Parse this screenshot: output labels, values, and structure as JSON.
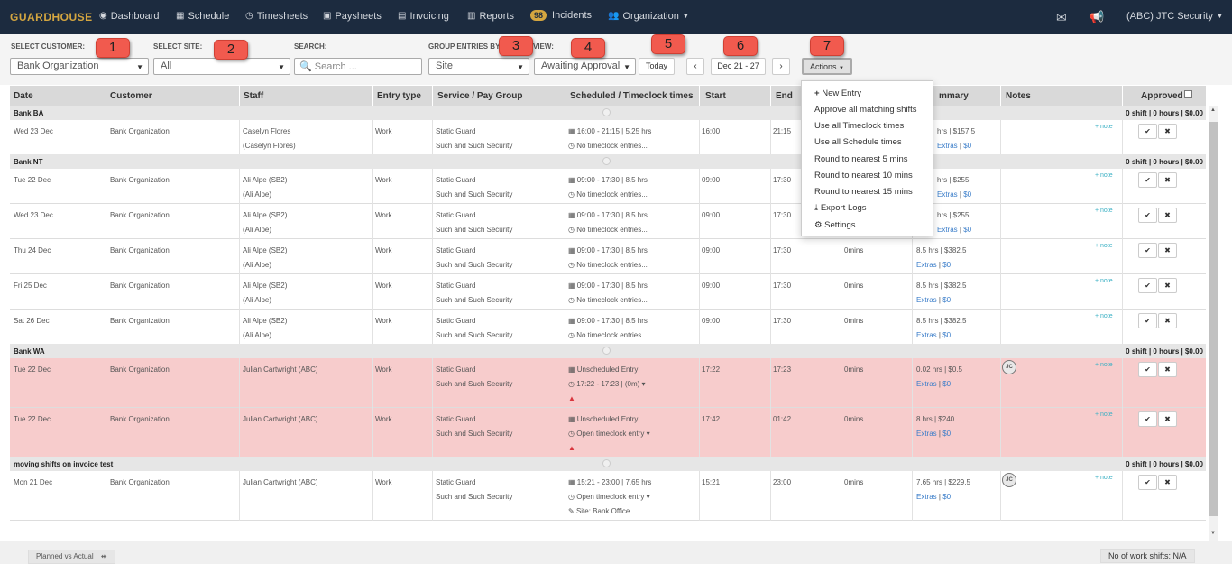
{
  "nav": {
    "logo": "GUARDHOUSE",
    "dashboard": "Dashboard",
    "schedule": "Schedule",
    "timesheets": "Timesheets",
    "paysheets": "Paysheets",
    "invoicing": "Invoicing",
    "reports": "Reports",
    "incidents_count": "98",
    "incidents": "Incidents",
    "organization": "Organization",
    "account": "(ABC) JTC Security"
  },
  "filters": {
    "customer_label": "SELECT CUSTOMER:",
    "customer_value": "Bank Organization",
    "site_label": "SELECT SITE:",
    "site_value": "All",
    "search_label": "SEARCH:",
    "search_placeholder": "Search ...",
    "group_label": "GROUP ENTRIES BY",
    "view_label": "VIEW:",
    "group_value": "Site",
    "view_value": "Awaiting Approval",
    "today": "Today",
    "date_range": "Dec 21 - 27",
    "actions": "Actions"
  },
  "callouts": [
    "1",
    "2",
    "3",
    "4",
    "5",
    "6",
    "7"
  ],
  "columns": {
    "date": "Date",
    "customer": "Customer",
    "staff": "Staff",
    "entry_type": "Entry type",
    "service": "Service / Pay Group",
    "scheduled": "Scheduled / Timeclock times",
    "start": "Start",
    "end": "End",
    "summary": "Summary",
    "notes": "Notes",
    "approved": "Approved"
  },
  "summary_visible": "mmary",
  "menu": {
    "new_entry": "New Entry",
    "approve_all": "Approve all matching shifts",
    "use_timeclock": "Use all Timeclock times",
    "use_schedule": "Use all Schedule times",
    "round5": "Round to nearest 5 mins",
    "round10": "Round to nearest 10 mins",
    "round15": "Round to nearest 15 mins",
    "export": "Export Logs",
    "settings": "Settings"
  },
  "groups": [
    {
      "name": "Bank BA",
      "summary": "0 shift | 0 hours | $0.00"
    },
    {
      "name": "Bank NT",
      "summary": "0 shift | 0 hours | $0.00"
    },
    {
      "name": "Bank WA",
      "summary": "0 shift | 0 hours | $0.00"
    },
    {
      "name": "moving shifts on invoice test",
      "summary": "0 shift | 0 hours | $0.00"
    }
  ],
  "rows": [
    {
      "date": "Wed 23 Dec",
      "customer": "Bank Organization",
      "staff": "Caselyn Flores",
      "staff2": "(Caselyn Flores)",
      "type": "Work",
      "service": "Static Guard",
      "pay": "Such and Such Security",
      "sched": "16:00 - 21:15 | 5.25 hrs",
      "clock": "No timeclock entries...",
      "start": "16:00",
      "end": "21:15",
      "brk": "",
      "sum": "hrs | $157.5",
      "extras": "Extras",
      "money": "$0",
      "note": "+ note"
    },
    {
      "date": "Tue 22 Dec",
      "customer": "Bank Organization",
      "staff": "Ali Alpe (SB2)",
      "staff2": "(Ali Alpe)",
      "type": "Work",
      "service": "Static Guard",
      "pay": "Such and Such Security",
      "sched": "09:00 - 17:30 | 8.5 hrs",
      "clock": "No timeclock entries...",
      "start": "09:00",
      "end": "17:30",
      "brk": "",
      "sum": "hrs | $255",
      "extras": "Extras",
      "money": "$0",
      "note": "+ note"
    },
    {
      "date": "Wed 23 Dec",
      "customer": "Bank Organization",
      "staff": "Ali Alpe (SB2)",
      "staff2": "(Ali Alpe)",
      "type": "Work",
      "service": "Static Guard",
      "pay": "Such and Such Security",
      "sched": "09:00 - 17:30 | 8.5 hrs",
      "clock": "No timeclock entries...",
      "start": "09:00",
      "end": "17:30",
      "brk": "",
      "sum": "hrs | $255",
      "extras": "Extras",
      "money": "$0",
      "note": "+ note"
    },
    {
      "date": "Thu 24 Dec",
      "customer": "Bank Organization",
      "staff": "Ali Alpe (SB2)",
      "staff2": "(Ali Alpe)",
      "type": "Work",
      "service": "Static Guard",
      "pay": "Such and Such Security",
      "sched": "09:00 - 17:30 | 8.5 hrs",
      "clock": "No timeclock entries...",
      "start": "09:00",
      "end": "17:30",
      "brk": "0mins",
      "sum": "8.5 hrs | $382.5",
      "extras": "Extras",
      "money": "$0",
      "note": "+ note"
    },
    {
      "date": "Fri 25 Dec",
      "customer": "Bank Organization",
      "staff": "Ali Alpe (SB2)",
      "staff2": "(Ali Alpe)",
      "type": "Work",
      "service": "Static Guard",
      "pay": "Such and Such Security",
      "sched": "09:00 - 17:30 | 8.5 hrs",
      "clock": "No timeclock entries...",
      "start": "09:00",
      "end": "17:30",
      "brk": "0mins",
      "sum": "8.5 hrs | $382.5",
      "extras": "Extras",
      "money": "$0",
      "note": "+ note"
    },
    {
      "date": "Sat 26 Dec",
      "customer": "Bank Organization",
      "staff": "Ali Alpe (SB2)",
      "staff2": "(Ali Alpe)",
      "type": "Work",
      "service": "Static Guard",
      "pay": "Such and Such Security",
      "sched": "09:00 - 17:30 | 8.5 hrs",
      "clock": "No timeclock entries...",
      "start": "09:00",
      "end": "17:30",
      "brk": "0mins",
      "sum": "8.5 hrs | $382.5",
      "extras": "Extras",
      "money": "$0",
      "note": "+ note"
    },
    {
      "date": "Tue 22 Dec",
      "customer": "Bank Organization",
      "staff": "Julian Cartwright (ABC)",
      "staff2": "",
      "type": "Work",
      "service": "Static Guard",
      "pay": "Such and Such Security",
      "sched": "Unscheduled Entry",
      "clock": "17:22 - 17:23 | (0m)",
      "start": "17:22",
      "end": "17:23",
      "brk": "0mins",
      "sum": "0.02 hrs | $0.5",
      "extras": "Extras",
      "money": "$0",
      "note": "+ note",
      "avatar": "JC"
    },
    {
      "date": "Tue 22 Dec",
      "customer": "Bank Organization",
      "staff": "Julian Cartwright (ABC)",
      "staff2": "",
      "type": "Work",
      "service": "Static Guard",
      "pay": "Such and Such Security",
      "sched": "Unscheduled Entry",
      "clock": "Open timeclock entry",
      "start": "17:42",
      "end": "01:42",
      "brk": "0mins",
      "sum": "8 hrs | $240",
      "extras": "Extras",
      "money": "$0",
      "note": "+ note"
    },
    {
      "date": "Mon 21 Dec",
      "customer": "Bank Organization",
      "staff": "Julian Cartwright (ABC)",
      "staff2": "",
      "type": "Work",
      "service": "Static Guard",
      "pay": "Such and Such Security",
      "sched": "15:21 - 23:00 | 7.65 hrs",
      "clock": "Open timeclock entry",
      "site": "Site: Bank Office",
      "start": "15:21",
      "end": "23:00",
      "brk": "0mins",
      "sum": "7.65 hrs | $229.5",
      "extras": "Extras",
      "money": "$0",
      "note": "+ note",
      "avatar": "JC"
    }
  ],
  "footer": {
    "planned": "Planned vs Actual",
    "work_shifts": "No of work shifts: N/A"
  }
}
